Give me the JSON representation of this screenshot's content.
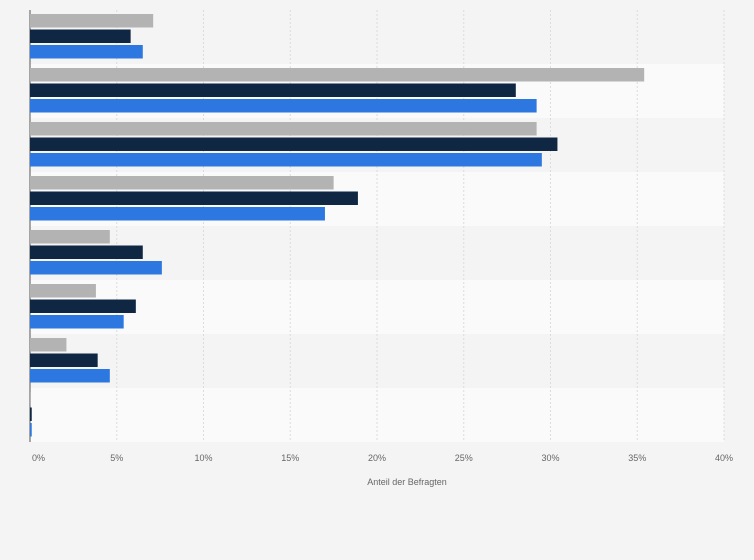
{
  "chart_data": {
    "type": "bar",
    "orientation": "horizontal",
    "categories": [
      "",
      "",
      "",
      "",
      "",
      "",
      "",
      ""
    ],
    "series": [
      {
        "color": "#b3b3b3",
        "values": [
          7.1,
          35.4,
          29.2,
          17.5,
          4.6,
          3.8,
          2.1,
          0.05
        ]
      },
      {
        "color": "#0f2742",
        "values": [
          5.8,
          28.0,
          30.4,
          18.9,
          6.5,
          6.1,
          3.9,
          0.1
        ]
      },
      {
        "color": "#2c77e0",
        "values": [
          6.5,
          29.2,
          29.5,
          17.0,
          7.6,
          5.4,
          4.6,
          0.1
        ]
      }
    ],
    "xlabel": "Anteil der Befragten",
    "xlim": [
      0,
      40
    ],
    "xticks": [
      "0%",
      "5%",
      "10%",
      "15%",
      "20%",
      "25%",
      "30%",
      "35%",
      "40%"
    ],
    "grid": true,
    "legend": false
  }
}
